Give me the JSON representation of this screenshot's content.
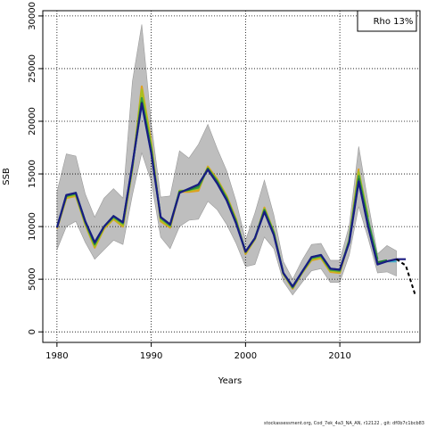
{
  "chart_data": {
    "type": "line",
    "title": "",
    "xlabel": "Years",
    "ylabel": "SSB",
    "xlim": [
      1978.5,
      2018.5
    ],
    "ylim": [
      -1000,
      30500
    ],
    "x_ticks": [
      1980,
      1990,
      2000,
      2010
    ],
    "y_ticks": [
      0,
      5000,
      10000,
      15000,
      20000,
      25000,
      30000
    ],
    "grid": true,
    "legend": {
      "text": "Rho 13%",
      "placement": "top-right"
    },
    "confidence_band": {
      "x": [
        1980,
        1981,
        1982,
        1983,
        1984,
        1985,
        1986,
        1987,
        1988,
        1989,
        1990,
        1991,
        1992,
        1993,
        1994,
        1995,
        1996,
        1997,
        1998,
        1999,
        2000,
        2001,
        2002,
        2003,
        2004,
        2005,
        2006,
        2007,
        2008,
        2009,
        2010,
        2011,
        2012,
        2013,
        2014,
        2015,
        2016
      ],
      "lower": [
        7800,
        10000,
        10500,
        8500,
        6900,
        7800,
        8700,
        8300,
        13000,
        17000,
        14300,
        9000,
        7900,
        10000,
        10600,
        10700,
        12400,
        11600,
        10200,
        8400,
        6200,
        6400,
        9000,
        7900,
        4800,
        3500,
        4700,
        5800,
        6000,
        4700,
        4700,
        7300,
        11900,
        8900,
        5600,
        5700,
        5300
      ],
      "upper": [
        13300,
        16900,
        16700,
        13100,
        10900,
        12700,
        13600,
        12700,
        23800,
        29200,
        19800,
        12800,
        12900,
        17200,
        16500,
        17800,
        19700,
        17400,
        15300,
        12400,
        8700,
        11300,
        14400,
        11100,
        6700,
        5000,
        6800,
        8300,
        8400,
        6800,
        6800,
        10100,
        17600,
        12300,
        7400,
        8200,
        7700
      ]
    },
    "series": [
      {
        "values": [
          9800,
          12700,
          12900,
          10200,
          8000,
          9800,
          10700,
          10000,
          15500,
          23300,
          18000,
          10500,
          9900,
          13300,
          13300,
          13400,
          15700,
          14500,
          12900,
          10700,
          7400,
          8800,
          11800,
          9500,
          5500,
          4100,
          5600,
          6800,
          7000,
          5700,
          5600,
          8700,
          15500
        ]
      },
      {
        "values": [
          9900,
          12800,
          13000,
          10300,
          8100,
          9900,
          10800,
          10100,
          15600,
          23000,
          17800,
          10600,
          10000,
          13400,
          13400,
          13600,
          15600,
          14400,
          12800,
          10600,
          7500,
          8800,
          11700,
          9500,
          5500,
          4200,
          5600,
          6900,
          7100,
          5800,
          5700,
          8800,
          15200,
          10900
        ]
      },
      {
        "values": [
          9900,
          12900,
          13100,
          10400,
          8300,
          10000,
          10900,
          10300,
          15700,
          22200,
          17400,
          10800,
          10100,
          13300,
          13500,
          13700,
          15500,
          14300,
          12700,
          10500,
          7600,
          8900,
          11600,
          9400,
          5600,
          4200,
          5700,
          7000,
          7200,
          5900,
          5800,
          8700,
          14800,
          10600,
          6900
        ]
      },
      {
        "values": [
          9900,
          12900,
          13200,
          10500,
          8400,
          10000,
          11000,
          10400,
          15800,
          21800,
          17100,
          10900,
          10200,
          13300,
          13500,
          13900,
          15500,
          14200,
          12600,
          10400,
          7600,
          8900,
          11500,
          9300,
          5600,
          4300,
          5700,
          7100,
          7300,
          6000,
          5900,
          8600,
          14500,
          10200,
          6600,
          6800
        ]
      },
      {
        "values": [
          9900,
          13000,
          13200,
          10500,
          8500,
          10000,
          11000,
          10400,
          15900,
          21600,
          17000,
          10900,
          10200,
          13200,
          13600,
          14000,
          15400,
          14100,
          12500,
          10300,
          7600,
          8900,
          11400,
          9200,
          5600,
          4300,
          5700,
          7100,
          7300,
          6000,
          5900,
          8500,
          14300,
          10000,
          6400,
          6700,
          6700
        ]
      },
      {
        "values": [
          9900,
          13000,
          13200,
          10500,
          8500,
          10000,
          11000,
          10400,
          15900,
          21700,
          17000,
          10900,
          10200,
          13200,
          13600,
          14000,
          15400,
          14100,
          12500,
          10300,
          7600,
          8900,
          11400,
          9200,
          5600,
          4300,
          5700,
          7100,
          7300,
          6000,
          5900,
          8500,
          14300,
          10000,
          6400,
          6700,
          6900,
          6900
        ]
      },
      {
        "values": [
          null,
          null,
          null,
          null,
          null,
          null,
          null,
          null,
          null,
          null,
          null,
          null,
          null,
          null,
          null,
          null,
          null,
          null,
          null,
          null,
          null,
          null,
          null,
          null,
          null,
          null,
          null,
          null,
          null,
          null,
          null,
          null,
          null,
          null,
          null,
          null,
          6900,
          6300,
          3500
        ]
      }
    ]
  },
  "colors": {
    "band": "#bebebe",
    "band_edge": "#9a9a9a",
    "lines": [
      "#e0a020",
      "#a8c020",
      "#3a9a40",
      "#1f7a2e",
      "#40b0c8",
      "#1a1a80",
      "#000000"
    ]
  },
  "footer": {
    "text": "stockassessment.org, Cod_7ek_4a3_NA_AN, r12122 , git: df0b7c1bcb83"
  }
}
